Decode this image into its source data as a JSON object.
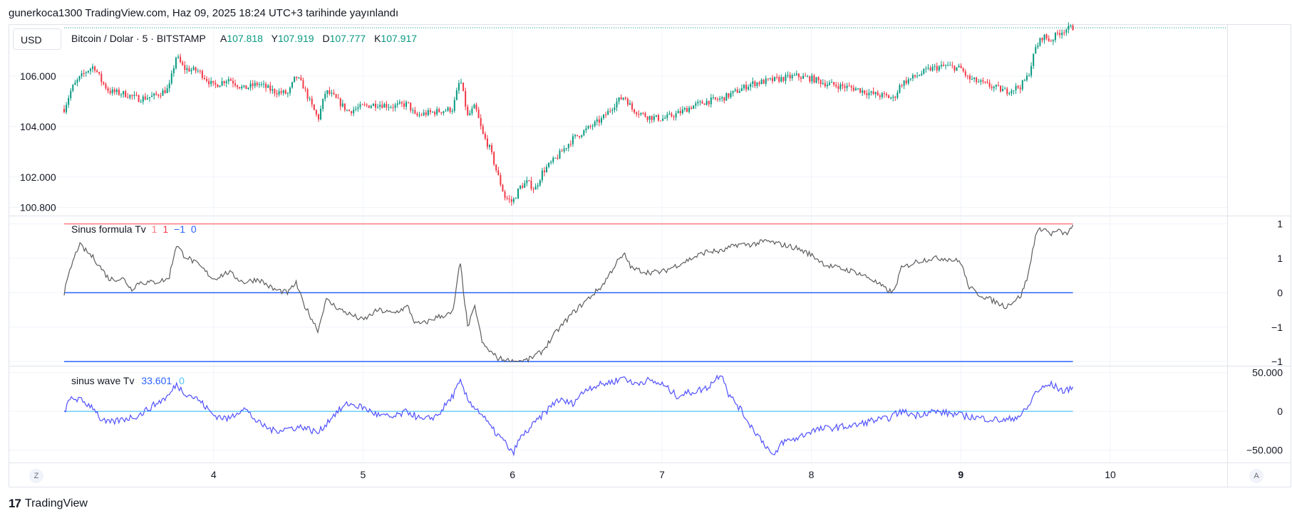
{
  "header": {
    "publish_line": "gunerkoca1300 TradingView.com, Haz 09, 2025 18:24 UTC+3 tarihinde yayınlandı"
  },
  "currency_button": "USD",
  "footer": {
    "brand": "TradingView",
    "left_button": "Z",
    "right_button": "A"
  },
  "colors": {
    "up": "#089981",
    "down": "#f23645",
    "grid": "#f0f3fa",
    "border": "#e0e3eb",
    "sinus_line": "#5d5d5d",
    "upper_band": "#f77c80",
    "mid_line": "#2962ff",
    "wave_line": "#5151ff",
    "zero_line": "#4fc3f7"
  },
  "chart_data": [
    {
      "type": "candlestick",
      "legend": {
        "symbol": "Bitcoin / Dolar · 5 · BITSTAMP",
        "open_label": "A",
        "open": "107.818",
        "high_label": "Y",
        "high": "107.919",
        "low_label": "D",
        "low": "107.777",
        "close_label": "K",
        "close": "107.917"
      },
      "y_ticks": [
        "106.000",
        "104.000",
        "102.000",
        "100.800"
      ],
      "y_tick_values": [
        106000,
        104000,
        102000,
        100800
      ],
      "ylim": [
        100500,
        108000
      ],
      "last_price": 107917,
      "x_ticks": [
        "4",
        "5",
        "6",
        "7",
        "8",
        "9",
        "10"
      ],
      "x_tick_bold": [
        false,
        false,
        false,
        false,
        false,
        true,
        false
      ],
      "x_range_days": [
        3.0,
        10.0
      ],
      "price_path": [
        [
          3.0,
          104.7
        ],
        [
          3.05,
          105.5
        ],
        [
          3.1,
          105.9
        ],
        [
          3.15,
          106.2
        ],
        [
          3.2,
          106.4
        ],
        [
          3.25,
          105.8
        ],
        [
          3.3,
          105.4
        ],
        [
          3.4,
          105.3
        ],
        [
          3.5,
          105.1
        ],
        [
          3.6,
          105.2
        ],
        [
          3.7,
          105.5
        ],
        [
          3.75,
          106.8
        ],
        [
          3.8,
          106.3
        ],
        [
          3.9,
          106.2
        ],
        [
          4.0,
          105.6
        ],
        [
          4.1,
          105.9
        ],
        [
          4.2,
          105.5
        ],
        [
          4.3,
          105.7
        ],
        [
          4.4,
          105.4
        ],
        [
          4.5,
          105.3
        ],
        [
          4.55,
          106.0
        ],
        [
          4.6,
          105.6
        ],
        [
          4.65,
          104.9
        ],
        [
          4.7,
          104.3
        ],
        [
          4.75,
          105.4
        ],
        [
          4.8,
          105.2
        ],
        [
          4.9,
          104.6
        ],
        [
          5.0,
          104.8
        ],
        [
          5.1,
          104.9
        ],
        [
          5.2,
          104.8
        ],
        [
          5.3,
          104.9
        ],
        [
          5.35,
          104.4
        ],
        [
          5.4,
          104.5
        ],
        [
          5.5,
          104.6
        ],
        [
          5.6,
          104.7
        ],
        [
          5.65,
          105.9
        ],
        [
          5.7,
          104.4
        ],
        [
          5.75,
          104.8
        ],
        [
          5.8,
          103.7
        ],
        [
          5.85,
          103.1
        ],
        [
          5.9,
          102.1
        ],
        [
          5.95,
          101.2
        ],
        [
          6.0,
          101.0
        ],
        [
          6.05,
          101.6
        ],
        [
          6.1,
          101.8
        ],
        [
          6.15,
          101.5
        ],
        [
          6.2,
          102.2
        ],
        [
          6.3,
          102.8
        ],
        [
          6.4,
          103.5
        ],
        [
          6.5,
          103.9
        ],
        [
          6.6,
          104.3
        ],
        [
          6.7,
          105.0
        ],
        [
          6.75,
          105.2
        ],
        [
          6.8,
          104.7
        ],
        [
          6.9,
          104.4
        ],
        [
          7.0,
          104.3
        ],
        [
          7.1,
          104.5
        ],
        [
          7.2,
          104.8
        ],
        [
          7.3,
          105.0
        ],
        [
          7.4,
          105.1
        ],
        [
          7.5,
          105.4
        ],
        [
          7.6,
          105.7
        ],
        [
          7.7,
          105.8
        ],
        [
          7.8,
          105.9
        ],
        [
          7.9,
          106.0
        ],
        [
          8.0,
          105.9
        ],
        [
          8.1,
          105.7
        ],
        [
          8.2,
          105.6
        ],
        [
          8.3,
          105.5
        ],
        [
          8.4,
          105.3
        ],
        [
          8.5,
          105.2
        ],
        [
          8.55,
          105.1
        ],
        [
          8.6,
          105.7
        ],
        [
          8.7,
          106.0
        ],
        [
          8.8,
          106.3
        ],
        [
          8.9,
          106.4
        ],
        [
          9.0,
          106.3
        ],
        [
          9.05,
          105.9
        ],
        [
          9.1,
          105.8
        ],
        [
          9.2,
          105.6
        ],
        [
          9.3,
          105.4
        ],
        [
          9.4,
          105.6
        ],
        [
          9.45,
          106.0
        ],
        [
          9.5,
          107.1
        ],
        [
          9.55,
          107.6
        ],
        [
          9.6,
          107.4
        ],
        [
          9.65,
          107.7
        ],
        [
          9.7,
          107.85
        ],
        [
          9.75,
          107.92
        ]
      ]
    },
    {
      "type": "line",
      "legend": {
        "name": "Sinus formula Tv",
        "v1": "1",
        "v2": "1",
        "v3": "−1",
        "v4": "0"
      },
      "y_ticks": [
        "1",
        "1",
        "0",
        "−1",
        "−1"
      ],
      "y_tick_values": [
        1.0,
        0.5,
        0.0,
        -0.5,
        -1.0
      ],
      "ylim": [
        -1.05,
        1.1
      ],
      "upper_band": 1.0,
      "mid_line": 0.0,
      "lower_band": -1.0,
      "series_path": [
        [
          3.0,
          0.0
        ],
        [
          3.05,
          0.4
        ],
        [
          3.1,
          0.7
        ],
        [
          3.2,
          0.5
        ],
        [
          3.3,
          0.2
        ],
        [
          3.4,
          0.2
        ],
        [
          3.45,
          0.05
        ],
        [
          3.5,
          0.15
        ],
        [
          3.6,
          0.15
        ],
        [
          3.7,
          0.2
        ],
        [
          3.75,
          0.7
        ],
        [
          3.8,
          0.55
        ],
        [
          3.9,
          0.4
        ],
        [
          4.0,
          0.2
        ],
        [
          4.1,
          0.3
        ],
        [
          4.2,
          0.15
        ],
        [
          4.3,
          0.2
        ],
        [
          4.4,
          0.05
        ],
        [
          4.5,
          0.0
        ],
        [
          4.55,
          0.15
        ],
        [
          4.6,
          -0.15
        ],
        [
          4.7,
          -0.55
        ],
        [
          4.75,
          -0.1
        ],
        [
          4.85,
          -0.25
        ],
        [
          5.0,
          -0.4
        ],
        [
          5.1,
          -0.25
        ],
        [
          5.2,
          -0.3
        ],
        [
          5.3,
          -0.2
        ],
        [
          5.35,
          -0.45
        ],
        [
          5.4,
          -0.45
        ],
        [
          5.5,
          -0.35
        ],
        [
          5.6,
          -0.3
        ],
        [
          5.65,
          0.45
        ],
        [
          5.7,
          -0.5
        ],
        [
          5.75,
          -0.2
        ],
        [
          5.8,
          -0.75
        ],
        [
          5.85,
          -0.85
        ],
        [
          5.9,
          -0.95
        ],
        [
          6.0,
          -1.0
        ],
        [
          6.1,
          -0.98
        ],
        [
          6.2,
          -0.85
        ],
        [
          6.3,
          -0.55
        ],
        [
          6.4,
          -0.3
        ],
        [
          6.5,
          -0.1
        ],
        [
          6.6,
          0.1
        ],
        [
          6.7,
          0.45
        ],
        [
          6.75,
          0.55
        ],
        [
          6.8,
          0.35
        ],
        [
          6.9,
          0.3
        ],
        [
          7.0,
          0.3
        ],
        [
          7.1,
          0.4
        ],
        [
          7.2,
          0.5
        ],
        [
          7.3,
          0.6
        ],
        [
          7.4,
          0.6
        ],
        [
          7.5,
          0.7
        ],
        [
          7.6,
          0.7
        ],
        [
          7.7,
          0.75
        ],
        [
          7.8,
          0.7
        ],
        [
          7.9,
          0.65
        ],
        [
          8.0,
          0.55
        ],
        [
          8.1,
          0.4
        ],
        [
          8.2,
          0.35
        ],
        [
          8.3,
          0.3
        ],
        [
          8.4,
          0.2
        ],
        [
          8.5,
          0.05
        ],
        [
          8.55,
          0.0
        ],
        [
          8.6,
          0.35
        ],
        [
          8.7,
          0.45
        ],
        [
          8.8,
          0.5
        ],
        [
          8.9,
          0.5
        ],
        [
          9.0,
          0.45
        ],
        [
          9.05,
          0.1
        ],
        [
          9.1,
          0.0
        ],
        [
          9.2,
          -0.1
        ],
        [
          9.3,
          -0.2
        ],
        [
          9.4,
          -0.05
        ],
        [
          9.45,
          0.25
        ],
        [
          9.5,
          0.85
        ],
        [
          9.55,
          0.95
        ],
        [
          9.6,
          0.85
        ],
        [
          9.65,
          0.9
        ],
        [
          9.7,
          0.85
        ],
        [
          9.75,
          0.95
        ]
      ]
    },
    {
      "type": "line",
      "legend": {
        "name": "sinus wave Tv",
        "value": "33.601",
        "zero": "0"
      },
      "y_ticks": [
        "50.000",
        "0",
        "−50.000"
      ],
      "y_tick_values": [
        50000,
        0,
        -50000
      ],
      "ylim": [
        -65000,
        57000
      ],
      "zero_line": 0,
      "series_path": [
        [
          3.0,
          0
        ],
        [
          3.05,
          18000
        ],
        [
          3.1,
          15000
        ],
        [
          3.2,
          5000
        ],
        [
          3.25,
          -12000
        ],
        [
          3.3,
          -15000
        ],
        [
          3.4,
          -10000
        ],
        [
          3.5,
          -5000
        ],
        [
          3.6,
          8000
        ],
        [
          3.7,
          20000
        ],
        [
          3.75,
          35000
        ],
        [
          3.8,
          25000
        ],
        [
          3.9,
          15000
        ],
        [
          4.0,
          -5000
        ],
        [
          4.1,
          -10000
        ],
        [
          4.2,
          5000
        ],
        [
          4.3,
          -15000
        ],
        [
          4.4,
          -25000
        ],
        [
          4.5,
          -22000
        ],
        [
          4.6,
          -20000
        ],
        [
          4.7,
          -28000
        ],
        [
          4.8,
          -5000
        ],
        [
          4.9,
          10000
        ],
        [
          5.0,
          5000
        ],
        [
          5.1,
          -5000
        ],
        [
          5.2,
          -8000
        ],
        [
          5.3,
          0
        ],
        [
          5.4,
          -12000
        ],
        [
          5.5,
          -5000
        ],
        [
          5.6,
          20000
        ],
        [
          5.65,
          38000
        ],
        [
          5.7,
          15000
        ],
        [
          5.8,
          -5000
        ],
        [
          5.85,
          -20000
        ],
        [
          5.9,
          -30000
        ],
        [
          5.95,
          -40000
        ],
        [
          6.0,
          -55000
        ],
        [
          6.05,
          -35000
        ],
        [
          6.1,
          -25000
        ],
        [
          6.2,
          -5000
        ],
        [
          6.3,
          15000
        ],
        [
          6.4,
          10000
        ],
        [
          6.5,
          30000
        ],
        [
          6.6,
          35000
        ],
        [
          6.7,
          40000
        ],
        [
          6.75,
          45000
        ],
        [
          6.8,
          35000
        ],
        [
          6.9,
          40000
        ],
        [
          7.0,
          35000
        ],
        [
          7.1,
          20000
        ],
        [
          7.2,
          25000
        ],
        [
          7.3,
          30000
        ],
        [
          7.4,
          50000
        ],
        [
          7.45,
          20000
        ],
        [
          7.5,
          10000
        ],
        [
          7.6,
          -20000
        ],
        [
          7.7,
          -45000
        ],
        [
          7.75,
          -60000
        ],
        [
          7.8,
          -40000
        ],
        [
          7.9,
          -35000
        ],
        [
          8.0,
          -25000
        ],
        [
          8.1,
          -22000
        ],
        [
          8.2,
          -20000
        ],
        [
          8.3,
          -18000
        ],
        [
          8.4,
          -12000
        ],
        [
          8.5,
          -10000
        ],
        [
          8.6,
          0
        ],
        [
          8.7,
          -5000
        ],
        [
          8.8,
          0
        ],
        [
          8.9,
          -2000
        ],
        [
          9.0,
          -5000
        ],
        [
          9.1,
          -8000
        ],
        [
          9.2,
          -10000
        ],
        [
          9.3,
          -12000
        ],
        [
          9.4,
          -5000
        ],
        [
          9.45,
          5000
        ],
        [
          9.5,
          25000
        ],
        [
          9.55,
          30000
        ],
        [
          9.6,
          35000
        ],
        [
          9.65,
          30000
        ],
        [
          9.7,
          25000
        ],
        [
          9.75,
          33601
        ]
      ]
    }
  ]
}
